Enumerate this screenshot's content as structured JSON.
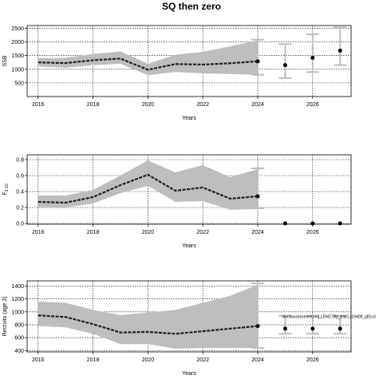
{
  "title": "SQ then zero",
  "colors": {
    "band": "#bebebe",
    "errorbar": "#bebebe",
    "line": "#222222",
    "grid": "#000000",
    "point": "#000000"
  },
  "chart_data": [
    {
      "type": "line",
      "ylabel": "SSB",
      "xlabel": "Years",
      "xlim": [
        2015.6,
        2027.4
      ],
      "ylim": [
        0,
        2600
      ],
      "x_ticks": [
        2016,
        2018,
        2020,
        2022,
        2024,
        2026
      ],
      "x_tick_labels": [
        "2016",
        "2018",
        "2020",
        "2022",
        "2024",
        "2026"
      ],
      "y_ticks": [
        500,
        1000,
        1500,
        2000,
        2500
      ],
      "y_tick_labels": [
        "500",
        "1000",
        "1500",
        "2000",
        "2500"
      ],
      "grid": true,
      "series": [
        {
          "x": [
            2016,
            2017,
            2018,
            2019,
            2020,
            2021,
            2022,
            2023,
            2024
          ],
          "values": [
            1250,
            1225,
            1330,
            1390,
            980,
            1190,
            1170,
            1220,
            1290
          ],
          "lower": [
            1100,
            1050,
            1150,
            1200,
            780,
            900,
            850,
            820,
            800
          ],
          "upper": [
            1400,
            1420,
            1560,
            1650,
            1200,
            1530,
            1640,
            1840,
            2060
          ]
        }
      ],
      "projections": {
        "x": [
          2025,
          2026,
          2027
        ],
        "values": [
          1150,
          1420,
          1680
        ],
        "lower": [
          680,
          900,
          1150
        ],
        "upper": [
          1920,
          2280,
          2530
        ]
      },
      "last_point": {
        "x": 2024,
        "value": 1290,
        "lower": 800,
        "upper": 2080
      }
    },
    {
      "type": "line",
      "ylabel": "F",
      "ylabel_sub": "3-10",
      "xlabel": "Years",
      "xlim": [
        2015.6,
        2027.4
      ],
      "ylim": [
        -0.01,
        0.86
      ],
      "x_ticks": [
        2016,
        2018,
        2020,
        2022,
        2024,
        2026
      ],
      "x_tick_labels": [
        "2016",
        "2018",
        "2020",
        "2022",
        "2024",
        "2026"
      ],
      "y_ticks": [
        0.0,
        0.2,
        0.4,
        0.6,
        0.8
      ],
      "y_tick_labels": [
        "0.0",
        "0.2",
        "0.4",
        "0.6",
        "0.8"
      ],
      "grid": true,
      "series": [
        {
          "x": [
            2016,
            2017,
            2018,
            2019,
            2020,
            2021,
            2022,
            2023,
            2024
          ],
          "values": [
            0.27,
            0.26,
            0.33,
            0.48,
            0.61,
            0.41,
            0.45,
            0.31,
            0.34
          ],
          "lower": [
            0.2,
            0.2,
            0.25,
            0.38,
            0.47,
            0.27,
            0.28,
            0.17,
            0.18
          ],
          "upper": [
            0.35,
            0.35,
            0.42,
            0.6,
            0.79,
            0.64,
            0.73,
            0.58,
            0.68
          ]
        }
      ],
      "projections": {
        "x": [
          2025,
          2026,
          2027
        ],
        "values": [
          0.0,
          0.0,
          0.0
        ],
        "lower": [
          0.0,
          0.0,
          0.0
        ],
        "upper": [
          0.0,
          0.0,
          0.0
        ]
      },
      "last_point": {
        "x": 2024,
        "value": 0.34,
        "lower": 0.19,
        "upper": 0.69
      }
    },
    {
      "type": "line",
      "ylabel": "Recruits (age 3)",
      "xlabel": "Years",
      "xlim": [
        2015.6,
        2027.4
      ],
      "ylim": [
        380,
        1480
      ],
      "x_ticks": [
        2016,
        2018,
        2020,
        2022,
        2024,
        2026
      ],
      "x_tick_labels": [
        "2016",
        "2018",
        "2020",
        "2022",
        "2024",
        "2026"
      ],
      "y_ticks": [
        400,
        600,
        800,
        1000,
        1200,
        1400
      ],
      "y_tick_labels": [
        "400",
        "600",
        "800",
        "1000",
        "1200",
        "1400"
      ],
      "grid": true,
      "series": [
        {
          "x": [
            2016,
            2017,
            2018,
            2019,
            2020,
            2021,
            2022,
            2023,
            2024
          ],
          "values": [
            945,
            920,
            810,
            680,
            690,
            660,
            700,
            740,
            780
          ],
          "lower": [
            780,
            760,
            660,
            500,
            500,
            430,
            440,
            440,
            440
          ],
          "upper": [
            1160,
            1140,
            1030,
            950,
            990,
            1030,
            1140,
            1250,
            1420
          ]
        }
      ],
      "projections": {
        "x": [
          2025,
          2026,
          2027
        ],
        "values": [
          740,
          740,
          740
        ],
        "lower": [
          660,
          660,
          660
        ],
        "upper": [
          940,
          940,
          940
        ]
      },
      "last_point": {
        "x": 2024,
        "value": 780,
        "lower": 440,
        "upper": 1440
      },
      "annotation": "stockassessment.org,LEM27Bp_trial1,r19408_g81cd"
    }
  ]
}
